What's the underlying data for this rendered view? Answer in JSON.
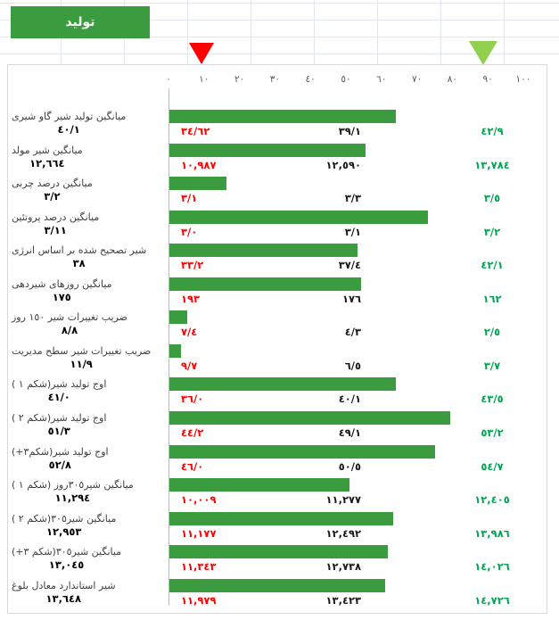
{
  "header": {
    "production_tab_label": "تولید"
  },
  "colors": {
    "bar": "#3a9c3e",
    "button": "#3a9c3e",
    "triangle_low": "#ff0000",
    "triangle_high": "#92d050",
    "p10_text": "#ff0000",
    "p50_text": "#1a1a1a",
    "p90_text": "#00a551"
  },
  "chart_data": {
    "type": "bar",
    "orientation": "horizontal",
    "title": "تولید",
    "legend_position": "none",
    "grid": false,
    "axis": {
      "min": 0,
      "max": 100,
      "tick_values": [
        0,
        10,
        20,
        30,
        40,
        50,
        60,
        70,
        80,
        90,
        100
      ],
      "tick_labels": [
        "٠",
        "١٠",
        "٢٠",
        "٣٠",
        "٤٠",
        "٥٠",
        "٦٠",
        "٧٠",
        "٨٠",
        "٩٠",
        "١٠٠"
      ]
    },
    "markers": {
      "red_triangle_value": 10,
      "green_triangle_value": 90
    },
    "rows": [
      {
        "label": "میانگین تولید شیر گاو شیری",
        "value": "٤٠/١",
        "p10": "٣٤/٦٢",
        "p50": "٣٩/١",
        "p90": "٤٢/٩",
        "bar_pct": 63.8
      },
      {
        "label": "میانگین شیر مولد",
        "value": "١٢,٦٦٤",
        "p10": "١٠,٩٨٧",
        "p50": "١٢,٥٩٠",
        "p90": "١٣,٧٨٤",
        "bar_pct": 55.3
      },
      {
        "label": "میانگین درصد چربی",
        "value": "٣/٢",
        "p10": "٣/١",
        "p50": "٣/٣",
        "p90": "٣/٥",
        "bar_pct": 16.1
      },
      {
        "label": "میانگین درصد پروتئین",
        "value": "٣/١١",
        "p10": "٣/٠",
        "p50": "٣/١",
        "p90": "٣/٢",
        "bar_pct": 72.9
      },
      {
        "label": "شیر تصحیح شده بر اساس انرژی",
        "value": "٣٨",
        "p10": "٣٣/٢",
        "p50": "٣٧/٤",
        "p90": "٤٢/١",
        "bar_pct": 53.0
      },
      {
        "label": "میانگین روزهای شیردهی",
        "value": "١٧٥",
        "p10": "١٩٣",
        "p50": "١٧٦",
        "p90": "١٦٢",
        "bar_pct": 54.0
      },
      {
        "label": "ضریب تغییرات شیر ١٥٠ روز",
        "value": "٨/٨",
        "p10": "٧/٤",
        "p50": "٤/٣",
        "p90": "٢/٥",
        "bar_pct": 5.0
      },
      {
        "label": "ضریب تغییرات شیر سطح مدیریت",
        "value": "١١/٩",
        "p10": "٩/٧",
        "p50": "٦/٥",
        "p90": "٣/٧",
        "bar_pct": 3.3
      },
      {
        "label": "اوج تولید شیر(شکم ١ )",
        "value": "٤١/٠",
        "p10": "٣٦/٠",
        "p50": "٤٠/١",
        "p90": "٤٣/٥",
        "bar_pct": 63.8
      },
      {
        "label": "اوج تولید شیر(شکم ٢ )",
        "value": "٥١/٣",
        "p10": "٤٤/٢",
        "p50": "٤٩/١",
        "p90": "٥٣/٢",
        "bar_pct": 79.1
      },
      {
        "label": "اوج تولید شیر(شکم٣+)",
        "value": "٥٢/٨",
        "p10": "٤٦/٠",
        "p50": "٥٠/٥",
        "p90": "٥٤/٧",
        "bar_pct": 74.9
      },
      {
        "label": "میانگین شیر٣٠٥روز (شکم ١ )",
        "value": "١١,٢٩٤",
        "p10": "١٠,٠٠٩",
        "p50": "١١,٢٧٧",
        "p90": "١٢,٤٠٥",
        "bar_pct": 50.8
      },
      {
        "label": "میانگین شیر٣٠٥(شکم ٢ )",
        "value": "١٢,٩٥٣",
        "p10": "١١,١٧٧",
        "p50": "١٢,٤٩٢",
        "p90": "١٣,٩٨٦",
        "bar_pct": 63.1
      },
      {
        "label": "میانگین شیر٣٠٥(شکم ٣+)",
        "value": "١٣,٠٤٥",
        "p10": "١١,٣٤٣",
        "p50": "١٢,٧٣٨",
        "p90": "١٤,٠٢٦",
        "bar_pct": 61.6
      },
      {
        "label": "شیر استاندارد معادل بلوغ",
        "value": "١٣,٦٤٨",
        "p10": "١١,٩٧٩",
        "p50": "١٣,٤٢٣",
        "p90": "١٤,٧٢٦",
        "bar_pct": 60.8
      }
    ]
  }
}
